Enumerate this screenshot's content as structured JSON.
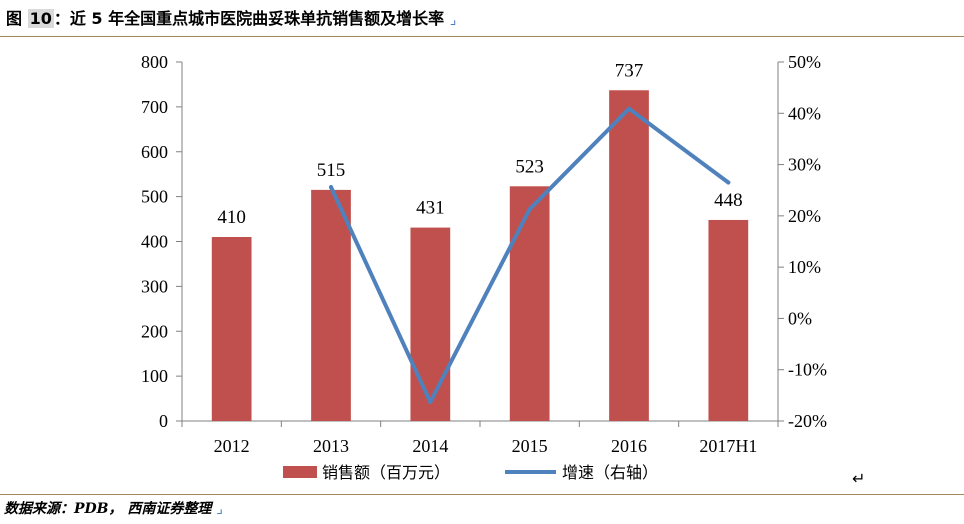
{
  "header": {
    "fig_prefix": "图 ",
    "fig_number": "10",
    "title": "：近 5 年全国重点城市医院曲妥珠单抗销售额及增长率",
    "end_mark": "⌟"
  },
  "source": {
    "text": "数据来源：PDB， 西南证券整理",
    "end_mark": "⌟"
  },
  "return_symbol": "↵",
  "colors": {
    "bar": "#c0504d",
    "line": "#4f81bd",
    "axis": "#808080",
    "rule": "#a08a5a"
  },
  "chart_data": {
    "type": "bar",
    "categories": [
      "2012",
      "2013",
      "2014",
      "2015",
      "2016",
      "2017H1"
    ],
    "series": [
      {
        "name": "销售额（百万元）",
        "type": "bar",
        "axis": "left",
        "values": [
          410,
          515,
          431,
          523,
          737,
          448
        ],
        "data_labels": [
          "410",
          "515",
          "431",
          "523",
          "737",
          "448"
        ]
      },
      {
        "name": "增速（右轴）",
        "type": "line",
        "axis": "right",
        "values": [
          null,
          25.6,
          -16.3,
          21.3,
          40.9,
          26.5
        ]
      }
    ],
    "y_left": {
      "min": 0,
      "max": 800,
      "ticks": [
        0,
        100,
        200,
        300,
        400,
        500,
        600,
        700,
        800
      ],
      "tick_labels": [
        "0",
        "100",
        "200",
        "300",
        "400",
        "500",
        "600",
        "700",
        "800"
      ]
    },
    "y_right": {
      "min": -20,
      "max": 50,
      "ticks": [
        -20,
        -10,
        0,
        10,
        20,
        30,
        40,
        50
      ],
      "tick_labels": [
        "-20%",
        "-10%",
        "0%",
        "10%",
        "20%",
        "30%",
        "40%",
        "50%"
      ]
    },
    "legend_position": "bottom",
    "grid": false
  }
}
